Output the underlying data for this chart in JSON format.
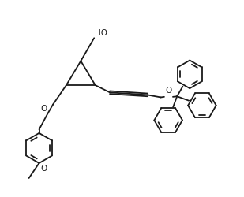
{
  "background": "#ffffff",
  "line_color": "#1a1a1a",
  "lw": 1.3,
  "fig_w": 3.09,
  "fig_h": 2.5,
  "dpi": 100,
  "xlim": [
    0,
    10
  ],
  "ylim": [
    0,
    8.1
  ]
}
